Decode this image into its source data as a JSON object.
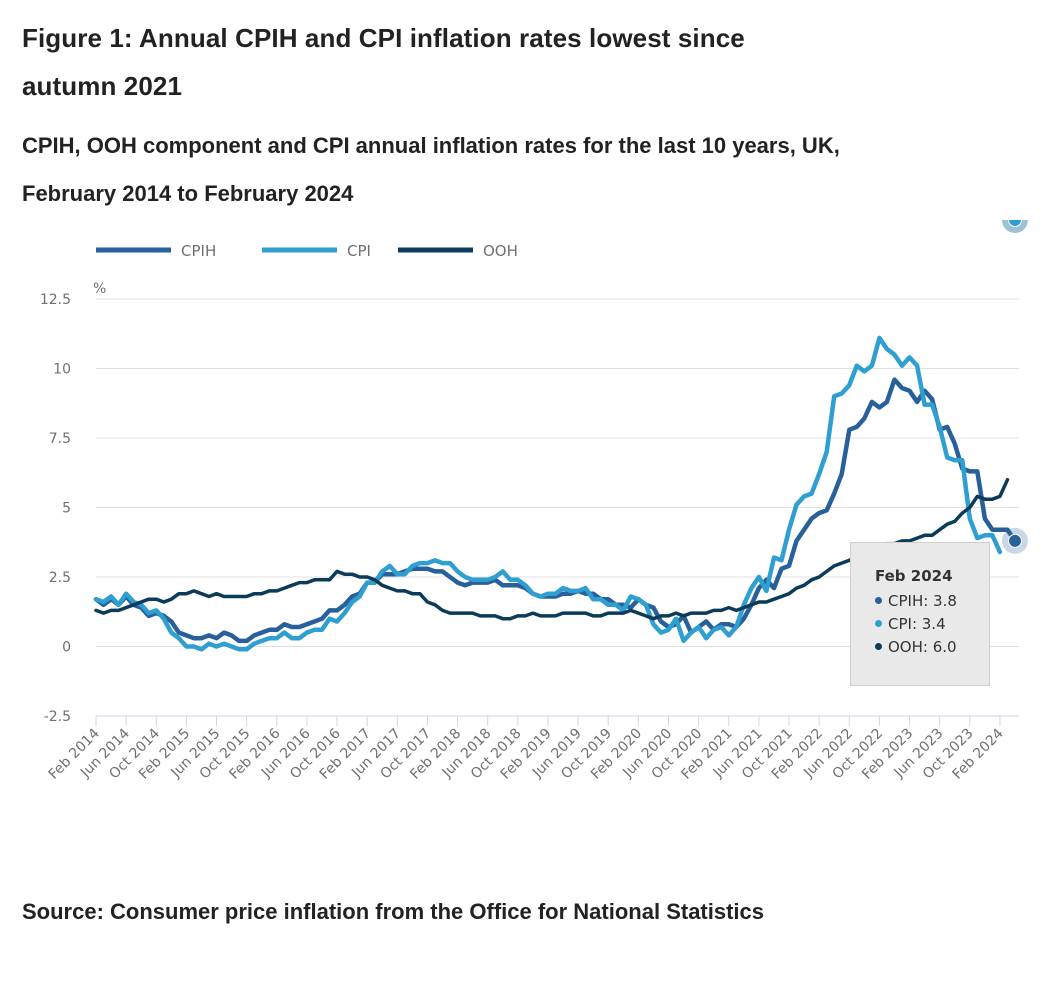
{
  "title": "Figure 1: Annual CPIH and CPI inflation rates lowest since autumn 2021",
  "subtitle": "CPIH, OOH component and CPI annual inflation rates for the last 10 years, UK, February 2014 to February 2024",
  "source": "Source: Consumer price inflation from the Office for National Statistics",
  "colors": {
    "CPIH": "#27609a",
    "CPI": "#2e9fd0",
    "OOH": "#0c3b5a",
    "grid": "#e0e0e0",
    "axis": "#ccd6eb"
  },
  "tooltip": {
    "heading": "Feb 2024",
    "rows": [
      {
        "label": "CPIH: 3.8",
        "series": "CPIH"
      },
      {
        "label": "CPI: 3.4",
        "series": "CPI"
      },
      {
        "label": "OOH: 6.0",
        "series": "OOH"
      }
    ]
  },
  "chart_data": {
    "type": "line",
    "title": "Figure 1: Annual CPIH and CPI inflation rates lowest since autumn 2021",
    "subtitle": "CPIH, OOH component and CPI annual inflation rates for the last 10 years, UK, February 2014 to February 2024",
    "xlabel": "",
    "ylabel": "%",
    "ylim": [
      -2.5,
      12.5
    ],
    "yticks": [
      12.5,
      10,
      7.5,
      5,
      2.5,
      0,
      -2.5
    ],
    "ytick_labels": [
      "12.5",
      "10",
      "7.5",
      "5",
      "2.5",
      "0",
      "-2.5"
    ],
    "grid": true,
    "legend": {
      "position": "top-left",
      "entries": [
        "CPIH",
        "CPI",
        "OOH"
      ]
    },
    "x_start": "Feb 2014",
    "x_end": "Feb 2024",
    "x_step": "monthly",
    "xtick_labels": [
      "Feb 2014",
      "Jun 2014",
      "Oct 2014",
      "Feb 2015",
      "Jun 2015",
      "Oct 2015",
      "Feb 2016",
      "Jun 2016",
      "Oct 2016",
      "Feb 2017",
      "Jun 2017",
      "Oct 2017",
      "Feb 2018",
      "Jun 2018",
      "Oct 2018",
      "Feb 2019",
      "Jun 2019",
      "Oct 2019",
      "Feb 2020",
      "Jun 2020",
      "Oct 2020",
      "Feb 2021",
      "Jun 2021",
      "Oct 2021",
      "Feb 2022",
      "Jun 2022",
      "Oct 2022",
      "Feb 2023",
      "Jun 2023",
      "Oct 2023",
      "Feb 2024"
    ],
    "series": [
      {
        "name": "CPIH",
        "values": [
          1.7,
          1.5,
          1.7,
          1.5,
          1.8,
          1.5,
          1.4,
          1.1,
          1.2,
          1.1,
          0.9,
          0.5,
          0.4,
          0.3,
          0.3,
          0.4,
          0.3,
          0.5,
          0.4,
          0.2,
          0.2,
          0.4,
          0.5,
          0.6,
          0.6,
          0.8,
          0.7,
          0.7,
          0.8,
          0.9,
          1.0,
          1.3,
          1.3,
          1.5,
          1.8,
          1.9,
          2.3,
          2.3,
          2.6,
          2.6,
          2.6,
          2.7,
          2.8,
          2.8,
          2.8,
          2.7,
          2.7,
          2.5,
          2.3,
          2.2,
          2.3,
          2.3,
          2.3,
          2.4,
          2.2,
          2.2,
          2.2,
          2.1,
          1.9,
          1.8,
          1.8,
          1.8,
          1.9,
          1.9,
          2.0,
          1.9,
          1.9,
          1.7,
          1.7,
          1.5,
          1.5,
          1.4,
          1.7,
          1.5,
          1.4,
          0.9,
          0.7,
          0.8,
          1.1,
          0.5,
          0.7,
          0.9,
          0.6,
          0.8,
          0.8,
          0.7,
          1.0,
          1.5,
          2.1,
          2.4,
          2.1,
          2.8,
          2.9,
          3.8,
          4.2,
          4.6,
          4.8,
          4.9,
          5.5,
          6.2,
          7.8,
          7.9,
          8.2,
          8.8,
          8.6,
          8.8,
          9.6,
          9.3,
          9.2,
          8.8,
          9.2,
          8.9,
          7.8,
          7.9,
          7.3,
          6.4,
          6.3,
          6.3,
          4.6,
          4.2,
          4.2,
          4.2,
          3.8
        ]
      },
      {
        "name": "CPI",
        "values": [
          1.7,
          1.6,
          1.8,
          1.5,
          1.9,
          1.6,
          1.5,
          1.2,
          1.3,
          1.0,
          0.5,
          0.3,
          0.0,
          0.0,
          -0.1,
          0.1,
          0.0,
          0.1,
          0.0,
          -0.1,
          -0.1,
          0.1,
          0.2,
          0.3,
          0.3,
          0.5,
          0.3,
          0.3,
          0.5,
          0.6,
          0.6,
          1.0,
          0.9,
          1.2,
          1.6,
          1.8,
          2.3,
          2.3,
          2.7,
          2.9,
          2.6,
          2.6,
          2.9,
          3.0,
          3.0,
          3.1,
          3.0,
          3.0,
          2.7,
          2.5,
          2.4,
          2.4,
          2.4,
          2.5,
          2.7,
          2.4,
          2.4,
          2.2,
          1.9,
          1.8,
          1.9,
          1.9,
          2.1,
          2.0,
          2.0,
          2.1,
          1.7,
          1.7,
          1.5,
          1.5,
          1.3,
          1.8,
          1.7,
          1.5,
          0.8,
          0.5,
          0.6,
          1.0,
          0.2,
          0.5,
          0.7,
          0.3,
          0.6,
          0.7,
          0.4,
          0.7,
          1.5,
          2.1,
          2.5,
          2.0,
          3.2,
          3.1,
          4.2,
          5.1,
          5.4,
          5.5,
          6.2,
          7.0,
          9.0,
          9.1,
          9.4,
          10.1,
          9.9,
          10.1,
          11.1,
          10.7,
          10.5,
          10.1,
          10.4,
          10.1,
          8.7,
          8.7,
          7.9,
          6.8,
          6.7,
          6.7,
          4.6,
          3.9,
          4.0,
          4.0,
          3.4
        ]
      },
      {
        "name": "OOH",
        "values": [
          1.3,
          1.2,
          1.3,
          1.3,
          1.4,
          1.5,
          1.6,
          1.7,
          1.7,
          1.6,
          1.7,
          1.9,
          1.9,
          2.0,
          1.9,
          1.8,
          1.9,
          1.8,
          1.8,
          1.8,
          1.8,
          1.9,
          1.9,
          2.0,
          2.0,
          2.1,
          2.2,
          2.3,
          2.3,
          2.4,
          2.4,
          2.4,
          2.7,
          2.6,
          2.6,
          2.5,
          2.5,
          2.4,
          2.2,
          2.1,
          2.0,
          2.0,
          1.9,
          1.9,
          1.6,
          1.5,
          1.3,
          1.2,
          1.2,
          1.2,
          1.2,
          1.1,
          1.1,
          1.1,
          1.0,
          1.0,
          1.1,
          1.1,
          1.2,
          1.1,
          1.1,
          1.1,
          1.2,
          1.2,
          1.2,
          1.2,
          1.1,
          1.1,
          1.2,
          1.2,
          1.2,
          1.3,
          1.2,
          1.1,
          1.0,
          1.1,
          1.1,
          1.2,
          1.1,
          1.2,
          1.2,
          1.2,
          1.3,
          1.3,
          1.4,
          1.3,
          1.4,
          1.5,
          1.6,
          1.6,
          1.7,
          1.8,
          1.9,
          2.1,
          2.2,
          2.4,
          2.5,
          2.7,
          2.9,
          3.0,
          3.1,
          3.2,
          3.3,
          3.5,
          3.6,
          3.7,
          3.7,
          3.8,
          3.8,
          3.9,
          4.0,
          4.0,
          4.2,
          4.4,
          4.5,
          4.8,
          5.0,
          5.4,
          5.3,
          5.3,
          5.4,
          6.0
        ]
      }
    ]
  }
}
